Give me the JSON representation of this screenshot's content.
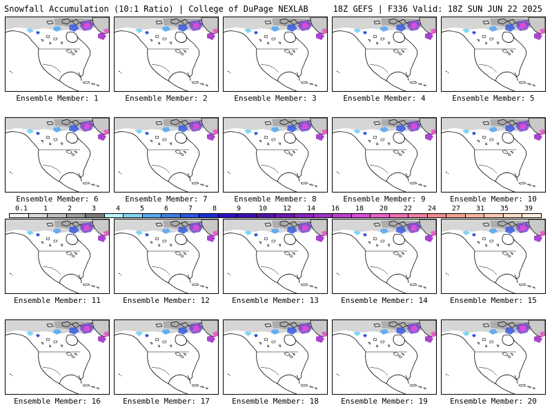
{
  "header": {
    "left_title": "Snowfall Accumulation (10:1 Ratio) | College of DuPage NEXLAB",
    "right_title": "18Z GEFS | F336 Valid: 18Z SUN JUN 22 2025"
  },
  "members": [
    {
      "label": "Ensemble Member: 1"
    },
    {
      "label": "Ensemble Member: 2"
    },
    {
      "label": "Ensemble Member: 3"
    },
    {
      "label": "Ensemble Member: 4"
    },
    {
      "label": "Ensemble Member: 5"
    },
    {
      "label": "Ensemble Member: 6"
    },
    {
      "label": "Ensemble Member: 7"
    },
    {
      "label": "Ensemble Member: 8"
    },
    {
      "label": "Ensemble Member: 9"
    },
    {
      "label": "Ensemble Member: 10"
    },
    {
      "label": "Ensemble Member: 11"
    },
    {
      "label": "Ensemble Member: 12"
    },
    {
      "label": "Ensemble Member: 13"
    },
    {
      "label": "Ensemble Member: 14"
    },
    {
      "label": "Ensemble Member: 15"
    },
    {
      "label": "Ensemble Member: 16"
    },
    {
      "label": "Ensemble Member: 17"
    },
    {
      "label": "Ensemble Member: 18"
    },
    {
      "label": "Ensemble Member: 19"
    },
    {
      "label": "Ensemble Member: 20"
    }
  ],
  "colorbar": {
    "tick_labels": [
      "0.1",
      "1",
      "2",
      "3",
      "4",
      "5",
      "6",
      "7",
      "8",
      "9",
      "10",
      "12",
      "14",
      "16",
      "18",
      "20",
      "22",
      "24",
      "27",
      "31",
      "35",
      "39"
    ],
    "colors": [
      "#f2f2f2",
      "#d9d9d9",
      "#bfbfbf",
      "#9e9e9e",
      "#7a7a7a",
      "#b8f2ff",
      "#7fd4f5",
      "#5aa8ee",
      "#3c7ee6",
      "#2a55dd",
      "#1a2fd3",
      "#2a10c8",
      "#3c10b0",
      "#5012a8",
      "#6a18b4",
      "#8624c0",
      "#a030c8",
      "#bc3ed0",
      "#d84cd8",
      "#e860c8",
      "#ee70b4",
      "#f07ea0",
      "#ee8c8c",
      "#f0a090",
      "#f4b49c",
      "#f8c8b0",
      "#fbdcc8",
      "#fdeee0"
    ]
  }
}
